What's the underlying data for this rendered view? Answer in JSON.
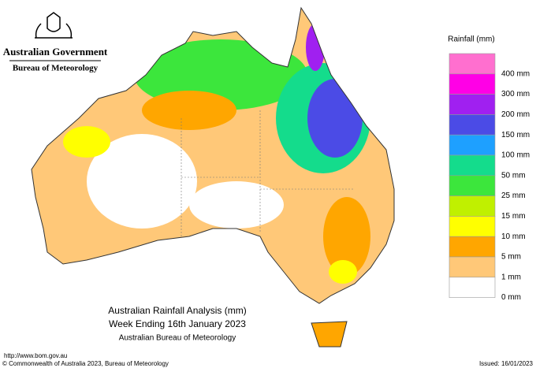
{
  "header": {
    "agency": "Australian Government",
    "bureau": "Bureau of Meteorology"
  },
  "title": {
    "line1": "Australian Rainfall Analysis (mm)",
    "line2": "Week Ending 16th January 2023",
    "line3": "Australian Bureau of Meteorology"
  },
  "legend": {
    "title": "Rainfall (mm)",
    "labels": [
      "400 mm",
      "300 mm",
      "200 mm",
      "150 mm",
      "100 mm",
      "50 mm",
      "25 mm",
      "15 mm",
      "10 mm",
      "5 mm",
      "1 mm",
      "0 mm"
    ],
    "colors": [
      "#ff6fcf",
      "#ff00e6",
      "#a020f0",
      "#4b4be6",
      "#1ea0ff",
      "#14dc8c",
      "#3ce63c",
      "#c0f000",
      "#ffff00",
      "#ffa600",
      "#ffc878",
      "#ffffff"
    ]
  },
  "footer": {
    "url": "http://www.bom.gov.au",
    "copyright": "© Commonwealth of Australia 2023, Bureau of Meteorology",
    "issued": "Issued: 16/01/2023"
  }
}
